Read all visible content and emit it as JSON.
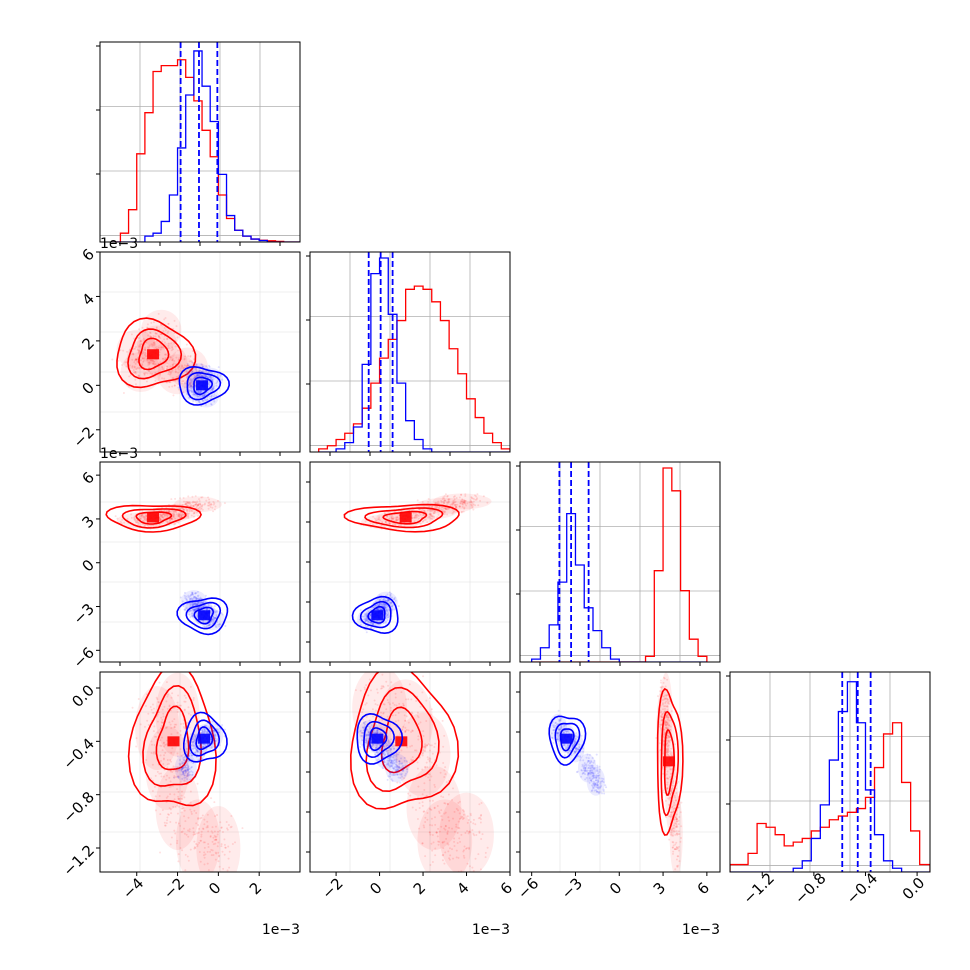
{
  "colors": {
    "red": "#ff0000",
    "blue": "#0000ff",
    "grid": "#b0b0b0",
    "axis": "#000000"
  },
  "chart_data": [
    {
      "type": "histogram",
      "panel": [
        0,
        0
      ],
      "xlim": [
        -5.8,
        4.0
      ],
      "bin_edges": [
        -5.2,
        -4.8,
        -4.4,
        -4.0,
        -3.6,
        -3.2,
        -2.8,
        -2.4,
        -2.0,
        -1.6,
        -1.2,
        -0.8,
        -0.4,
        0.0,
        0.4,
        0.8,
        1.2,
        1.6,
        2.0,
        2.4,
        2.8,
        3.2,
        3.6,
        4.0
      ],
      "series": [
        {
          "color": "red",
          "counts": [
            0,
            3,
            11,
            30,
            44,
            58,
            60,
            60,
            62,
            56,
            48,
            38,
            29,
            16,
            8,
            4,
            2,
            1,
            0.6,
            0.4,
            0.2,
            0,
            0
          ]
        },
        {
          "color": "blue",
          "counts": [
            0,
            0,
            0,
            0,
            2,
            3,
            7,
            16,
            32,
            50,
            65,
            53,
            41,
            23,
            9,
            4,
            2,
            1,
            0.5,
            0,
            0,
            0,
            0
          ]
        }
      ],
      "quantiles": [
        -1.85,
        -0.95,
        -0.05
      ],
      "ymax": 66
    },
    {
      "type": "scatter_contour",
      "panel": [
        1,
        0
      ],
      "xlim": [
        -5.8,
        4.0
      ],
      "ylim": [
        -3.0,
        6.0
      ],
      "yticks": [
        "−2",
        "0",
        "2",
        "4",
        "6"
      ],
      "yoffset": "1e−3",
      "series": [
        {
          "color": "red",
          "center": [
            -3.2,
            1.4
          ],
          "spread": [
            1.1,
            1.0
          ],
          "sample": [
            [
              -3.5,
              1.2
            ],
            [
              -3.0,
              1.8
            ],
            [
              -2.5,
              1.0
            ],
            [
              -2.0,
              0.5
            ],
            [
              -4.0,
              1.6
            ],
            [
              -1.5,
              0.8
            ],
            [
              -3.8,
              0.6
            ],
            [
              -2.8,
              2.5
            ]
          ]
        },
        {
          "color": "blue",
          "center": [
            -0.8,
            0.0
          ],
          "spread": [
            0.7,
            0.55
          ],
          "sample": [
            [
              -0.8,
              0.0
            ],
            [
              -0.4,
              0.3
            ],
            [
              -1.2,
              -0.2
            ],
            [
              -0.6,
              -0.5
            ],
            [
              -1.0,
              0.5
            ]
          ]
        }
      ]
    },
    {
      "type": "histogram",
      "panel": [
        1,
        1
      ],
      "xlim": [
        -3.2,
        6.0
      ],
      "bin_edges": [
        -2.8,
        -2.4,
        -2.0,
        -1.6,
        -1.2,
        -0.8,
        -0.4,
        0.0,
        0.4,
        0.8,
        1.2,
        1.6,
        2.0,
        2.4,
        2.8,
        3.2,
        3.6,
        4.0,
        4.4,
        4.8,
        5.2,
        5.6,
        6.0
      ],
      "series": [
        {
          "color": "red",
          "counts": [
            1,
            2,
            4,
            6,
            9,
            14,
            22,
            30,
            36,
            42,
            52,
            53,
            52,
            48,
            42,
            33,
            25,
            17,
            11,
            6,
            3,
            1
          ]
        },
        {
          "color": "blue",
          "counts": [
            0,
            0,
            1,
            3,
            8,
            28,
            57,
            62,
            44,
            22,
            10,
            4,
            1,
            0,
            0,
            0,
            0,
            0,
            0,
            0,
            0,
            0
          ]
        }
      ],
      "quantiles": [
        -0.5,
        0.05,
        0.6
      ],
      "ymax": 62
    },
    {
      "type": "scatter_contour",
      "panel": [
        2,
        0
      ],
      "xlim": [
        -5.8,
        4.0
      ],
      "ylim": [
        -6.8,
        6.9
      ],
      "yticks": [
        "−6",
        "−3",
        "0",
        "3",
        "6"
      ],
      "yoffset": "1e−3",
      "series": [
        {
          "color": "red",
          "center": [
            -3.2,
            3.1
          ],
          "spread": [
            1.3,
            0.6
          ],
          "sample": [
            [
              -3.0,
              3.0
            ],
            [
              -2.0,
              3.5
            ],
            [
              -1.0,
              4.0
            ],
            [
              -3.8,
              2.9
            ],
            [
              -2.6,
              3.2
            ]
          ]
        },
        {
          "color": "blue",
          "center": [
            -0.7,
            -3.6
          ],
          "spread": [
            0.7,
            0.8
          ],
          "sample": [
            [
              -0.7,
              -3.5
            ],
            [
              -1.2,
              -2.6
            ],
            [
              -0.3,
              -3.9
            ],
            [
              -1.0,
              -3.1
            ]
          ]
        }
      ]
    },
    {
      "type": "scatter_contour",
      "panel": [
        2,
        1
      ],
      "xlim": [
        -3.2,
        6.0
      ],
      "ylim": [
        -6.8,
        6.9
      ],
      "series": [
        {
          "color": "red",
          "center": [
            1.2,
            3.1
          ],
          "spread": [
            1.5,
            0.6
          ],
          "sample": [
            [
              1.2,
              3.1
            ],
            [
              2.2,
              3.5
            ],
            [
              3.0,
              3.9
            ],
            [
              0.5,
              2.8
            ],
            [
              3.8,
              4.2
            ]
          ]
        },
        {
          "color": "blue",
          "center": [
            -0.1,
            -3.6
          ],
          "spread": [
            0.6,
            0.8
          ],
          "sample": [
            [
              -0.1,
              -3.6
            ],
            [
              0.3,
              -2.7
            ],
            [
              -0.5,
              -3.9
            ],
            [
              0.1,
              -3.2
            ]
          ]
        }
      ]
    },
    {
      "type": "histogram",
      "panel": [
        2,
        2
      ],
      "xlim": [
        -6.8,
        6.9
      ],
      "bin_edges": [
        -6.0,
        -5.4,
        -4.8,
        -4.2,
        -3.6,
        -3.0,
        -2.4,
        -1.8,
        -1.2,
        -0.6,
        0.0,
        0.6,
        1.2,
        1.8,
        2.4,
        3.0,
        3.6,
        4.2,
        4.8,
        5.4,
        6.0
      ],
      "series": [
        {
          "color": "red",
          "counts": [
            0,
            0,
            0,
            0,
            0,
            0,
            0,
            0,
            0,
            0,
            0,
            0,
            0,
            2,
            32,
            68,
            60,
            25,
            8,
            2
          ]
        },
        {
          "color": "blue",
          "counts": [
            1,
            5,
            13,
            28,
            52,
            34,
            19,
            11,
            5,
            1,
            0,
            0,
            0,
            0,
            0,
            0,
            0,
            0,
            0,
            0
          ]
        }
      ],
      "quantiles": [
        -4.1,
        -3.3,
        -2.1
      ],
      "ymax": 68
    },
    {
      "type": "scatter_contour",
      "panel": [
        3,
        0
      ],
      "xlim": [
        -5.8,
        4.0
      ],
      "ylim": [
        -1.38,
        0.12
      ],
      "yticks": [
        "−1.2",
        "−0.8",
        "−0.4",
        "0.0"
      ],
      "xticks": [
        "−4",
        "−2",
        "0",
        "2"
      ],
      "xoffset": "1e−3",
      "series": [
        {
          "color": "red",
          "center": [
            -2.2,
            -0.4
          ],
          "spread": [
            1.2,
            0.35
          ],
          "sample": [
            [
              -2.0,
              -0.2
            ],
            [
              -3.0,
              -0.3
            ],
            [
              -2.5,
              -0.6
            ],
            [
              -2.0,
              -0.9
            ],
            [
              -1.0,
              -1.15
            ],
            [
              0.0,
              -1.2
            ]
          ]
        },
        {
          "color": "blue",
          "center": [
            -0.7,
            -0.38
          ],
          "spread": [
            0.6,
            0.12
          ],
          "sample": [
            [
              -0.7,
              -0.38
            ],
            [
              -0.3,
              -0.35
            ],
            [
              -1.1,
              -0.45
            ],
            [
              -1.6,
              -0.6
            ]
          ]
        }
      ]
    },
    {
      "type": "scatter_contour",
      "panel": [
        3,
        1
      ],
      "xlim": [
        -3.2,
        6.0
      ],
      "ylim": [
        -1.38,
        0.12
      ],
      "xticks": [
        "−2",
        "0",
        "2",
        "4",
        "6"
      ],
      "xoffset": "1e−3",
      "series": [
        {
          "color": "red",
          "center": [
            1.0,
            -0.4
          ],
          "spread": [
            1.4,
            0.35
          ],
          "sample": [
            [
              0.0,
              -0.15
            ],
            [
              1.2,
              -0.25
            ],
            [
              2.0,
              -0.5
            ],
            [
              2.5,
              -0.9
            ],
            [
              3.0,
              -1.15
            ],
            [
              4.0,
              -1.1
            ]
          ]
        },
        {
          "color": "blue",
          "center": [
            -0.1,
            -0.38
          ],
          "spread": [
            0.6,
            0.12
          ],
          "sample": [
            [
              -0.1,
              -0.38
            ],
            [
              0.3,
              -0.5
            ],
            [
              -0.5,
              -0.35
            ],
            [
              0.8,
              -0.6
            ]
          ]
        }
      ]
    },
    {
      "type": "scatter_contour",
      "panel": [
        3,
        2
      ],
      "xlim": [
        -6.8,
        6.9
      ],
      "ylim": [
        -1.38,
        0.12
      ],
      "xticks": [
        "−6",
        "−3",
        "0",
        "3",
        "6"
      ],
      "xoffset": "1e−3",
      "series": [
        {
          "color": "red",
          "center": [
            3.4,
            -0.55
          ],
          "spread": [
            0.5,
            0.35
          ],
          "sample": [
            [
              3.2,
              -0.2
            ],
            [
              3.4,
              -0.5
            ],
            [
              3.6,
              -0.8
            ],
            [
              3.9,
              -1.1
            ],
            [
              3.0,
              -0.3
            ]
          ]
        },
        {
          "color": "blue",
          "center": [
            -3.6,
            -0.38
          ],
          "spread": [
            0.7,
            0.12
          ],
          "sample": [
            [
              -3.6,
              -0.38
            ],
            [
              -3.0,
              -0.45
            ],
            [
              -2.2,
              -0.6
            ],
            [
              -1.6,
              -0.7
            ],
            [
              -4.2,
              -0.3
            ]
          ]
        }
      ]
    },
    {
      "type": "histogram",
      "panel": [
        3,
        3
      ],
      "xlim": [
        -1.45,
        0.1
      ],
      "xticks": [
        "−1.2",
        "−0.8",
        "−0.4",
        "0.0"
      ],
      "bin_edges": [
        -1.45,
        -1.38,
        -1.31,
        -1.24,
        -1.17,
        -1.1,
        -1.03,
        -0.96,
        -0.89,
        -0.82,
        -0.75,
        -0.68,
        -0.61,
        -0.54,
        -0.47,
        -0.4,
        -0.33,
        -0.26,
        -0.19,
        -0.12,
        -0.05,
        0.02,
        0.1
      ],
      "series": [
        {
          "color": "red",
          "counts": [
            2,
            2,
            5,
            13,
            12,
            10,
            7,
            8,
            9,
            11,
            12,
            14,
            15,
            16,
            17,
            20,
            28,
            37,
            40,
            24,
            11,
            2
          ]
        },
        {
          "color": "blue",
          "counts": [
            0,
            0,
            0,
            0,
            0,
            0,
            0,
            1,
            3,
            9,
            18,
            30,
            43,
            51,
            40,
            22,
            10,
            3,
            1,
            0,
            0,
            0
          ]
        }
      ],
      "quantiles": [
        -0.58,
        -0.46,
        -0.36
      ],
      "ymax": 52
    }
  ]
}
